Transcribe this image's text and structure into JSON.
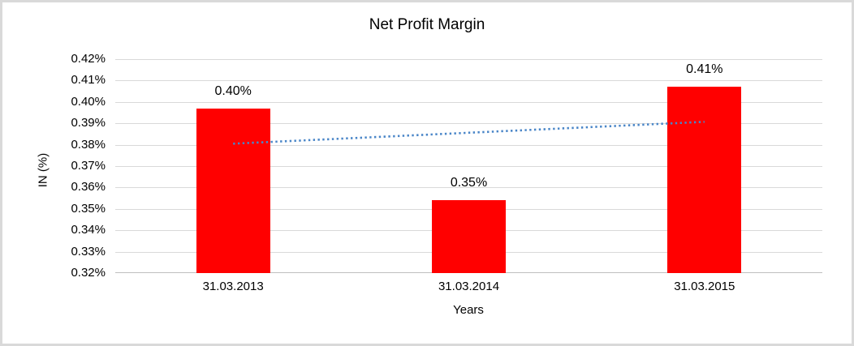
{
  "frame": {
    "border_color": "#d9d9d9",
    "background_color": "#ffffff"
  },
  "chart_data": {
    "type": "bar",
    "title": "Net Profit Margin",
    "xlabel": "Years",
    "ylabel": "IN (%)",
    "categories": [
      "31.03.2013",
      "31.03.2014",
      "31.03.2015"
    ],
    "series": [
      {
        "name": "Net Profit Margin",
        "values": [
          0.397,
          0.354,
          0.407
        ]
      }
    ],
    "bar_labels": [
      "0.40%",
      "0.35%",
      "0.41%"
    ],
    "bar_color": "#ff0000",
    "ylim": [
      0.32,
      0.42
    ],
    "yticks": [
      {
        "value": 0.42,
        "label": "0.42%"
      },
      {
        "value": 0.41,
        "label": "0.41%"
      },
      {
        "value": 0.4,
        "label": "0.40%"
      },
      {
        "value": 0.39,
        "label": "0.39%"
      },
      {
        "value": 0.38,
        "label": "0.38%"
      },
      {
        "value": 0.37,
        "label": "0.37%"
      },
      {
        "value": 0.36,
        "label": "0.36%"
      },
      {
        "value": 0.35,
        "label": "0.35%"
      },
      {
        "value": 0.34,
        "label": "0.34%"
      },
      {
        "value": 0.33,
        "label": "0.33%"
      },
      {
        "value": 0.32,
        "label": "0.32%"
      }
    ],
    "grid": true,
    "gridline_color": "#d9d9d9",
    "axis_line_color": "#bfbfbf",
    "legend": "none",
    "trendline": {
      "type": "linear",
      "style": "dotted",
      "color": "#4a86c8",
      "start_value": 0.3805,
      "end_value": 0.3907
    }
  }
}
